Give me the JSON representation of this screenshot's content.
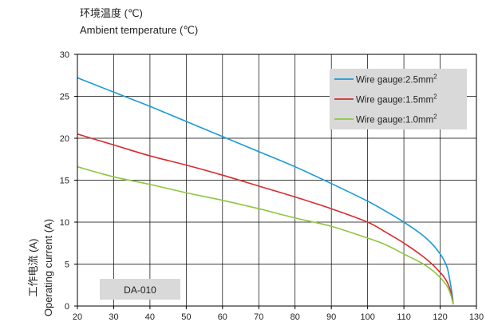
{
  "chart_data": {
    "type": "line",
    "title_cn": "环境温度 (℃)",
    "title_en": "Ambient temperature (℃)",
    "ylabel_cn": "工作电流 (A)",
    "ylabel_en": "Operating current (A)",
    "xlim": [
      20,
      130
    ],
    "ylim": [
      0,
      30
    ],
    "x_ticks": [
      "20",
      "30",
      "40",
      "50",
      "60",
      "70",
      "80",
      "90",
      "100",
      "110",
      "120",
      "130"
    ],
    "y_ticks": [
      "0",
      "5",
      "10",
      "15",
      "20",
      "25",
      "30"
    ],
    "grid": true,
    "legend_position": "top-right",
    "annotation": "DA-010",
    "series": [
      {
        "name": "Wire gauge:2.5mm",
        "sup": "2",
        "color": "#1a9ad6",
        "x": [
          20,
          30,
          40,
          50,
          60,
          70,
          80,
          90,
          100,
          105,
          110,
          115,
          118,
          120,
          121,
          122,
          122.7,
          123.3,
          123.6
        ],
        "y": [
          27.2,
          25.5,
          23.8,
          22.0,
          20.2,
          18.4,
          16.6,
          14.6,
          12.5,
          11.3,
          10.0,
          8.5,
          7.3,
          6.2,
          5.5,
          4.5,
          3.0,
          1.4,
          0.2
        ]
      },
      {
        "name": "Wire gauge:1.5mm",
        "sup": "2",
        "color": "#d92b2b",
        "x": [
          20,
          30,
          40,
          50,
          60,
          70,
          80,
          90,
          100,
          105,
          110,
          115,
          118,
          120,
          121,
          122,
          122.8,
          123.4,
          123.6
        ],
        "y": [
          20.5,
          19.2,
          17.9,
          16.8,
          15.6,
          14.3,
          13.0,
          11.6,
          10.0,
          8.8,
          7.5,
          6.0,
          4.9,
          4.0,
          3.5,
          2.8,
          1.9,
          0.8,
          0.2
        ]
      },
      {
        "name": "Wire gauge:1.0mm",
        "sup": "2",
        "color": "#8dc63f",
        "x": [
          20,
          30,
          40,
          50,
          60,
          70,
          80,
          90,
          100,
          105,
          110,
          115,
          118,
          120,
          121,
          122,
          122.8,
          123.4,
          123.6
        ],
        "y": [
          16.6,
          15.4,
          14.5,
          13.5,
          12.6,
          11.6,
          10.5,
          9.5,
          8.1,
          7.3,
          6.2,
          5.1,
          4.2,
          3.4,
          2.9,
          2.3,
          1.5,
          0.6,
          0.2
        ]
      }
    ]
  }
}
